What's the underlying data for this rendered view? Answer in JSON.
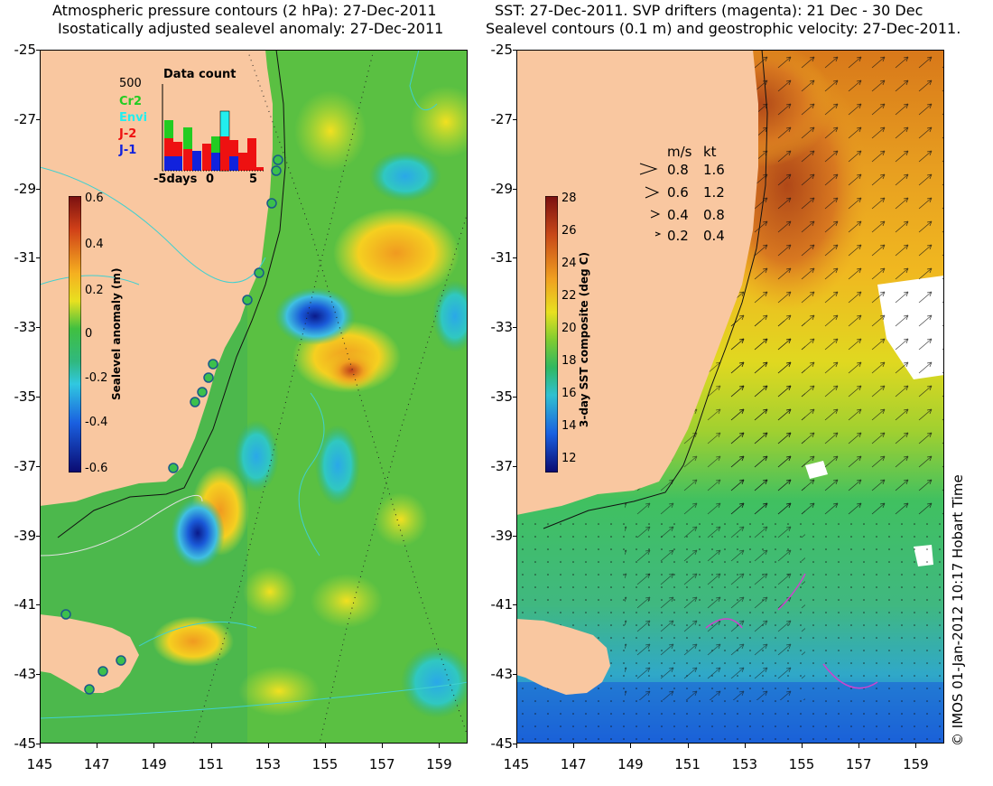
{
  "left": {
    "title_line1": "Atmospheric pressure contours (2 hPa): 27-Dec-2011",
    "title_line2": "Isostatically adjusted sealevel anomaly: 27-Dec-2011",
    "colorbar": {
      "title": "Sealevel anomaly (m)",
      "ticks": [
        "0.6",
        "0.4",
        "0.2",
        "0",
        "-0.2",
        "-0.4",
        "-0.6"
      ],
      "range": [
        -0.6,
        0.6
      ]
    },
    "data_count": {
      "title": "Data count",
      "ymax_label": "500",
      "legend": [
        {
          "label": "Cr2",
          "color": "#22cc22"
        },
        {
          "label": "Envi",
          "color": "#22eeee"
        },
        {
          "label": "J-2",
          "color": "#ee1111"
        },
        {
          "label": "J-1",
          "color": "#1122dd"
        }
      ],
      "xlabel": "-5days",
      "xticks": [
        "0",
        "5"
      ]
    }
  },
  "right": {
    "title_line1": "SST: 27-Dec-2011. SVP drifters (magenta): 21 Dec - 30 Dec",
    "title_line2": "Sealevel contours (0.1 m) and geostrophic velocity: 27-Dec-2011.",
    "colorbar": {
      "title": "3-day SST composite (deg C)",
      "ticks": [
        "28",
        "26",
        "24",
        "22",
        "20",
        "18",
        "16",
        "14",
        "12"
      ],
      "range": [
        11,
        28
      ]
    },
    "velocity_legend": {
      "header_ms": "m/s",
      "header_kt": "kt",
      "rows": [
        {
          "ms": "0.8",
          "kt": "1.6"
        },
        {
          "ms": "0.6",
          "kt": "1.2"
        },
        {
          "ms": "0.4",
          "kt": "0.8"
        },
        {
          "ms": "0.2",
          "kt": "0.4"
        }
      ]
    }
  },
  "axes": {
    "lat_ticks": [
      "-25",
      "-27",
      "-29",
      "-31",
      "-33",
      "-35",
      "-37",
      "-39",
      "-41",
      "-43",
      "-45"
    ],
    "lon_ticks": [
      "145",
      "147",
      "149",
      "151",
      "153",
      "155",
      "157",
      "159"
    ]
  },
  "credit": "© IMOS 01-Jan-2012 10:17 Hobart Time",
  "colors": {
    "land": "#f9c7a0",
    "frame": "#000000"
  }
}
